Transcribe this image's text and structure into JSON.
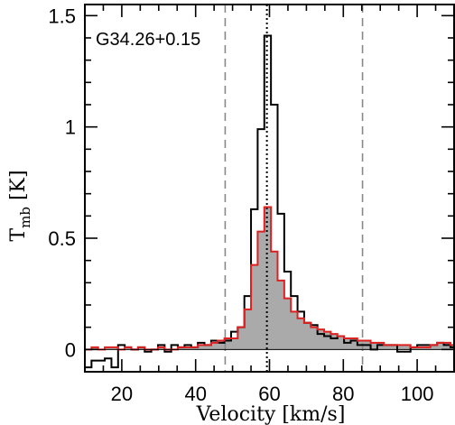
{
  "chart_data": {
    "type": "line",
    "title": "",
    "annotation": "G34.26+0.15",
    "xlabel": "Velocity [km/s]",
    "ylabel": {
      "main": "T",
      "sub": "mb",
      "unit": "[K]"
    },
    "xlim": [
      10,
      110
    ],
    "ylim": [
      -0.1,
      1.55
    ],
    "xticks": {
      "major": [
        20,
        40,
        60,
        80,
        100
      ],
      "major_labels": [
        "20",
        "40",
        "60",
        "80",
        "100"
      ],
      "minor_step": 5
    },
    "yticks": {
      "major": [
        0,
        0.5,
        1,
        1.5
      ],
      "major_labels": [
        "0",
        "0.5",
        "1",
        "1.5"
      ],
      "minor_step": 0.1
    },
    "vlines": [
      {
        "x": 48.0,
        "style": "dashed",
        "color": "#888888"
      },
      {
        "x": 59.3,
        "style": "dotted",
        "color": "#000000"
      },
      {
        "x": 85.2,
        "style": "dashed",
        "color": "#888888"
      }
    ],
    "series": [
      {
        "style": "step",
        "color": "#000000",
        "x": [
          10.0,
          11.8,
          13.6,
          15.4,
          17.2,
          19.0,
          20.8,
          22.6,
          24.4,
          26.2,
          28.0,
          29.8,
          31.6,
          33.4,
          35.2,
          37.0,
          38.8,
          40.6,
          42.4,
          44.2,
          46.0,
          47.8,
          49.6,
          51.4,
          53.2,
          55.0,
          56.8,
          58.6,
          60.4,
          62.2,
          64.0,
          65.8,
          67.6,
          69.4,
          71.2,
          73.0,
          74.8,
          76.6,
          78.4,
          80.2,
          82.0,
          83.8,
          85.6,
          87.4,
          89.2,
          91.0,
          92.8,
          94.6,
          96.4,
          98.2,
          100.0,
          101.8,
          103.6,
          105.4,
          107.2,
          109.0
        ],
        "y": [
          -0.08,
          -0.05,
          -0.05,
          -0.04,
          -0.08,
          0.02,
          0.01,
          0.0,
          0.01,
          -0.01,
          0.0,
          0.02,
          -0.01,
          0.02,
          0.01,
          0.02,
          0.01,
          0.03,
          0.02,
          0.04,
          0.03,
          0.04,
          0.08,
          0.1,
          0.24,
          0.63,
          0.99,
          1.41,
          1.1,
          0.61,
          0.35,
          0.24,
          0.17,
          0.12,
          0.11,
          0.07,
          0.06,
          0.05,
          0.06,
          0.03,
          0.04,
          0.02,
          0.02,
          0.0,
          0.02,
          0.02,
          0.02,
          -0.01,
          -0.01,
          0.01,
          0.02,
          0.02,
          0.02,
          0.03,
          0.02,
          0.01
        ]
      },
      {
        "style": "step",
        "color": "#dd2020",
        "fill": "#aaaaaa",
        "x": [
          10.0,
          11.8,
          13.6,
          15.4,
          17.2,
          19.0,
          20.8,
          22.6,
          24.4,
          26.2,
          28.0,
          29.8,
          31.6,
          33.4,
          35.2,
          37.0,
          38.8,
          40.6,
          42.4,
          44.2,
          46.0,
          47.8,
          49.6,
          51.4,
          53.2,
          55.0,
          56.8,
          58.6,
          60.4,
          62.2,
          64.0,
          65.8,
          67.6,
          69.4,
          71.2,
          73.0,
          74.8,
          76.6,
          78.4,
          80.2,
          82.0,
          83.8,
          85.6,
          87.4,
          89.2,
          91.0,
          92.8,
          94.6,
          96.4,
          98.2,
          100.0,
          101.8,
          103.6,
          105.4,
          107.2,
          109.0
        ],
        "y": [
          0.0,
          0.01,
          0.0,
          0.01,
          0.01,
          0.0,
          0.01,
          0.0,
          0.01,
          0.0,
          0.0,
          0.01,
          0.0,
          0.0,
          0.01,
          0.01,
          0.01,
          0.02,
          0.02,
          0.03,
          0.04,
          0.05,
          0.05,
          0.1,
          0.18,
          0.38,
          0.53,
          0.64,
          0.44,
          0.31,
          0.23,
          0.17,
          0.14,
          0.12,
          0.1,
          0.09,
          0.08,
          0.07,
          0.06,
          0.05,
          0.05,
          0.04,
          0.04,
          0.03,
          0.03,
          0.02,
          0.02,
          0.02,
          0.02,
          0.01,
          0.01,
          0.01,
          0.02,
          0.03,
          0.03,
          0.02
        ]
      }
    ]
  }
}
